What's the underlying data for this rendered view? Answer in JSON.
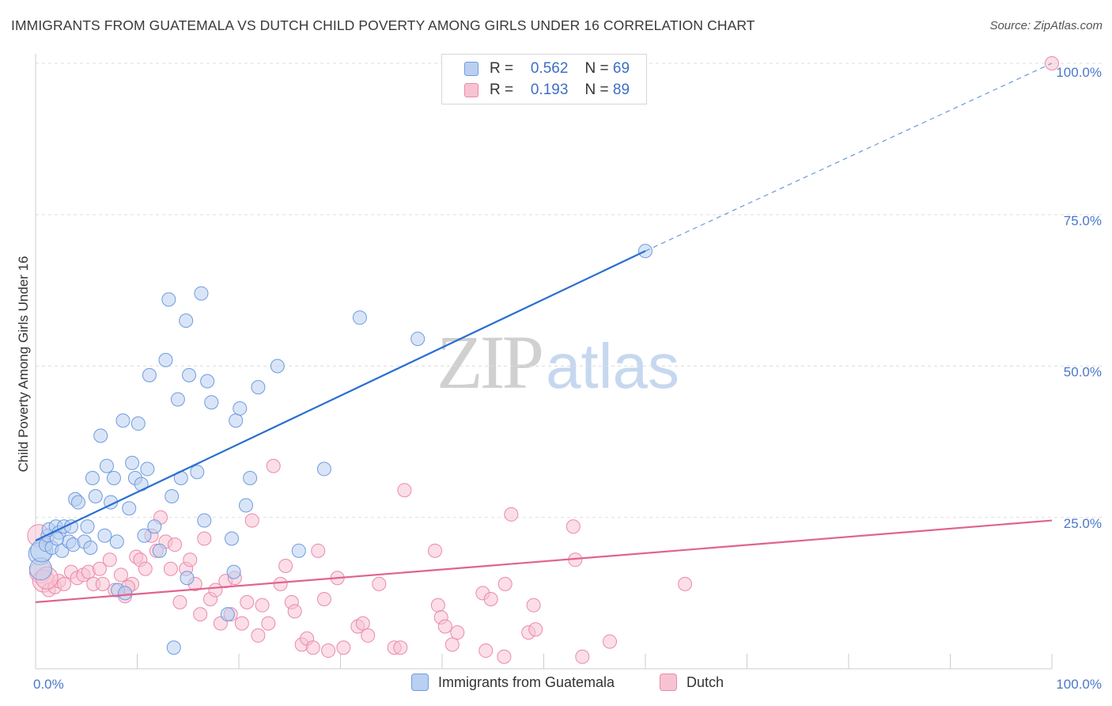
{
  "title": "IMMIGRANTS FROM GUATEMALA VS DUTCH CHILD POVERTY AMONG GIRLS UNDER 16 CORRELATION CHART",
  "source": "Source: ZipAtlas.com",
  "watermark": {
    "zip": "ZIP",
    "atlas": "atlas"
  },
  "legend": {
    "rows": [
      {
        "r_label": "R =",
        "r_value": "0.562",
        "n_label": "N =",
        "n_value": "69"
      },
      {
        "r_label": "R =",
        "r_value": "0.193",
        "n_label": "N =",
        "n_value": "89"
      }
    ]
  },
  "colors": {
    "guatemala_fill": "#b9d0f0",
    "guatemala_stroke": "#6f9be0",
    "guatemala_line": "#2a6fcf",
    "dutch_fill": "#f7c3d3",
    "dutch_stroke": "#ea8aa9",
    "dutch_line": "#e0638f",
    "tick": "#4a78c8",
    "grid": "#dddddd"
  },
  "chart_data": {
    "type": "scatter",
    "xlabel": "",
    "ylabel": "Child Poverty Among Girls Under 16",
    "xlim": [
      0,
      100
    ],
    "ylim": [
      0,
      100
    ],
    "x_tick_labels": [
      "0.0%",
      "100.0%"
    ],
    "y_ticks": [
      25,
      50,
      75,
      100
    ],
    "y_tick_labels": [
      "25.0%",
      "50.0%",
      "75.0%",
      "100.0%"
    ],
    "grid": "horizontal dashed",
    "legend_position": "top-center and bottom",
    "series": [
      {
        "name": "Immigrants from Guatemala",
        "r": 0.562,
        "n": 69,
        "trend": {
          "x0": 0,
          "y0": 21.2,
          "x1": 60,
          "y1": 69,
          "x_dashed_end": 100,
          "y_dashed_end": 100
        },
        "points": [
          [
            0.4,
            19
          ],
          [
            0.5,
            16.5
          ],
          [
            0.6,
            19.5
          ],
          [
            1,
            20.5
          ],
          [
            1.2,
            22
          ],
          [
            1.3,
            23
          ],
          [
            1.6,
            20
          ],
          [
            2,
            23.5
          ],
          [
            2.3,
            22.5
          ],
          [
            2.6,
            19.5
          ],
          [
            2.8,
            23.5
          ],
          [
            3.3,
            21
          ],
          [
            3.5,
            23.5
          ],
          [
            3.7,
            20.5
          ],
          [
            3.9,
            28
          ],
          [
            4.2,
            27.5
          ],
          [
            4.8,
            21
          ],
          [
            5.1,
            23.5
          ],
          [
            5.4,
            20
          ],
          [
            5.6,
            31.5
          ],
          [
            5.9,
            28.5
          ],
          [
            6.4,
            38.5
          ],
          [
            6.8,
            22
          ],
          [
            7,
            33.5
          ],
          [
            7.4,
            27.5
          ],
          [
            7.7,
            31.5
          ],
          [
            8,
            21
          ],
          [
            8.1,
            13
          ],
          [
            8.6,
            41
          ],
          [
            8.8,
            12.5
          ],
          [
            9.2,
            26.5
          ],
          [
            9.5,
            34
          ],
          [
            9.8,
            31.5
          ],
          [
            10.1,
            40.5
          ],
          [
            10.4,
            30.5
          ],
          [
            10.7,
            22
          ],
          [
            11,
            33
          ],
          [
            11.2,
            48.5
          ],
          [
            11.7,
            23.5
          ],
          [
            12.2,
            19.5
          ],
          [
            12.8,
            51
          ],
          [
            13.1,
            61
          ],
          [
            13.4,
            28.5
          ],
          [
            14,
            44.5
          ],
          [
            14.3,
            31.5
          ],
          [
            14.8,
            57.5
          ],
          [
            14.9,
            15
          ],
          [
            15.1,
            48.5
          ],
          [
            15.9,
            32.5
          ],
          [
            16.3,
            62
          ],
          [
            16.6,
            24.5
          ],
          [
            16.9,
            47.5
          ],
          [
            17.3,
            44
          ],
          [
            18.9,
            9
          ],
          [
            19.3,
            21.5
          ],
          [
            19.5,
            16
          ],
          [
            19.7,
            41
          ],
          [
            20.1,
            43
          ],
          [
            20.7,
            27
          ],
          [
            21.1,
            31.5
          ],
          [
            21.9,
            46.5
          ],
          [
            23.8,
            50
          ],
          [
            25.9,
            19.5
          ],
          [
            28.4,
            33
          ],
          [
            31.9,
            58
          ],
          [
            37.6,
            54.5
          ],
          [
            60,
            69
          ],
          [
            13.6,
            3.5
          ],
          [
            2.1,
            21.5
          ]
        ]
      },
      {
        "name": "Dutch",
        "r": 0.193,
        "n": 89,
        "trend": {
          "x0": 0,
          "y0": 11,
          "x1": 100,
          "y1": 24.5
        },
        "points": [
          [
            0.3,
            22
          ],
          [
            0.5,
            16
          ],
          [
            0.8,
            14.5
          ],
          [
            1.3,
            13
          ],
          [
            1.9,
            13.5
          ],
          [
            2.3,
            14.5
          ],
          [
            2.8,
            14
          ],
          [
            3.5,
            16
          ],
          [
            4.1,
            15
          ],
          [
            4.7,
            15.5
          ],
          [
            5.2,
            16
          ],
          [
            5.7,
            14
          ],
          [
            6.3,
            16.5
          ],
          [
            6.6,
            14
          ],
          [
            7.3,
            18
          ],
          [
            7.8,
            13
          ],
          [
            8.4,
            15.5
          ],
          [
            8.8,
            12
          ],
          [
            9.5,
            14
          ],
          [
            9.9,
            18.5
          ],
          [
            10.3,
            18
          ],
          [
            10.8,
            16.5
          ],
          [
            11.4,
            22
          ],
          [
            11.9,
            19.5
          ],
          [
            12.3,
            25
          ],
          [
            12.8,
            21
          ],
          [
            13.3,
            16.5
          ],
          [
            13.7,
            20.5
          ],
          [
            14.2,
            11
          ],
          [
            14.8,
            16.5
          ],
          [
            15.2,
            18
          ],
          [
            15.7,
            14
          ],
          [
            16.2,
            9
          ],
          [
            16.6,
            21.5
          ],
          [
            17.2,
            11.5
          ],
          [
            17.7,
            13
          ],
          [
            18.2,
            7.5
          ],
          [
            18.7,
            14.5
          ],
          [
            19.2,
            9
          ],
          [
            19.6,
            15
          ],
          [
            20.3,
            7.5
          ],
          [
            20.8,
            11
          ],
          [
            21.3,
            24.5
          ],
          [
            21.9,
            5.5
          ],
          [
            22.3,
            10.5
          ],
          [
            22.9,
            7.5
          ],
          [
            23.4,
            33.5
          ],
          [
            24.1,
            14
          ],
          [
            24.6,
            17
          ],
          [
            25.2,
            11
          ],
          [
            25.5,
            9.5
          ],
          [
            26.2,
            4
          ],
          [
            26.7,
            5
          ],
          [
            27.3,
            3.5
          ],
          [
            27.8,
            19.5
          ],
          [
            28.4,
            11.5
          ],
          [
            28.8,
            3
          ],
          [
            29.7,
            15
          ],
          [
            30.3,
            3.5
          ],
          [
            31.7,
            7
          ],
          [
            32.2,
            7.5
          ],
          [
            32.7,
            5.5
          ],
          [
            33.8,
            14
          ],
          [
            35.3,
            3.5
          ],
          [
            35.9,
            3.5
          ],
          [
            36.3,
            29.5
          ],
          [
            39.3,
            19.5
          ],
          [
            39.6,
            10.5
          ],
          [
            39.9,
            8.5
          ],
          [
            40.3,
            7
          ],
          [
            41,
            4
          ],
          [
            41.5,
            6
          ],
          [
            44,
            12.5
          ],
          [
            44.3,
            3
          ],
          [
            44.8,
            11.5
          ],
          [
            46.1,
            2
          ],
          [
            46.8,
            25.5
          ],
          [
            48.5,
            6
          ],
          [
            49,
            10.5
          ],
          [
            49.2,
            6.5
          ],
          [
            52.9,
            23.5
          ],
          [
            53.1,
            18
          ],
          [
            53.8,
            2
          ],
          [
            56.5,
            4.5
          ],
          [
            63.9,
            14
          ],
          [
            46.2,
            14
          ],
          [
            100,
            100
          ],
          [
            1.1,
            15
          ],
          [
            9.1,
            13.5
          ]
        ]
      }
    ]
  },
  "bottom_legend": [
    {
      "label": "Immigrants from Guatemala"
    },
    {
      "label": "Dutch"
    }
  ]
}
